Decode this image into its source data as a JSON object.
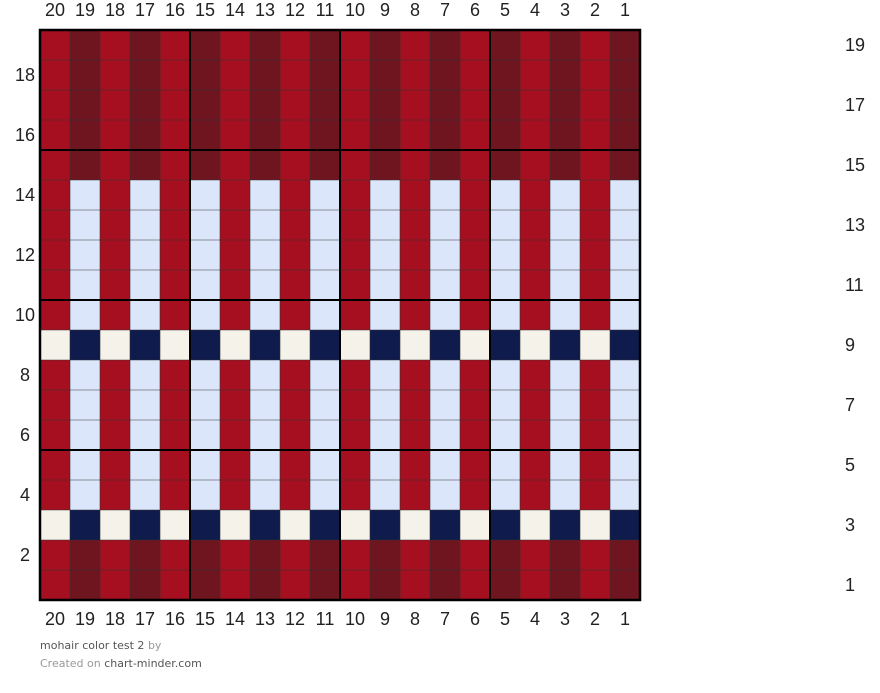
{
  "chart_data": {
    "type": "heatmap",
    "title": "mohair color test 2",
    "columns": 20,
    "rows": 19,
    "column_labels_left_to_right": [
      "20",
      "19",
      "18",
      "17",
      "16",
      "15",
      "14",
      "13",
      "12",
      "11",
      "10",
      "9",
      "8",
      "7",
      "6",
      "5",
      "4",
      "3",
      "2",
      "1"
    ],
    "left_row_labels": [
      "2",
      "4",
      "6",
      "8",
      "10",
      "12",
      "14",
      "16",
      "18"
    ],
    "right_row_labels": [
      "1",
      "3",
      "5",
      "7",
      "9",
      "11",
      "13",
      "15",
      "17",
      "19"
    ],
    "colors": {
      "red": "#a50f1f",
      "maroon": "#6e1520",
      "light_blue": "#dce6fb",
      "cream": "#f5f2ea",
      "navy": "#0f1a4d"
    },
    "row_patterns": [
      {
        "rows": [
          1,
          2,
          15,
          16,
          17,
          18,
          19
        ],
        "pattern": [
          "maroon",
          "red"
        ]
      },
      {
        "rows": [
          3,
          9
        ],
        "pattern": [
          "navy",
          "cream"
        ]
      },
      {
        "rows": [
          4,
          5,
          6,
          7,
          8,
          10,
          11,
          12,
          13,
          14
        ],
        "pattern": [
          "light_blue",
          "red"
        ]
      }
    ],
    "pattern_note": "pattern repeats starting from column 1 (rightmost)"
  },
  "footer": {
    "title": "mohair color test 2",
    "by": "by",
    "created_on": "Created on",
    "site": "chart-minder.com"
  }
}
